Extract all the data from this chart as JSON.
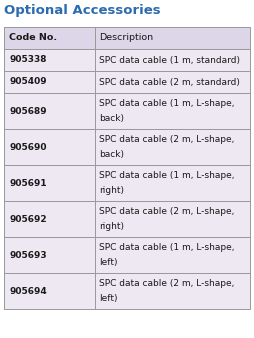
{
  "title": "Optional Accessories",
  "title_color": "#2B6CB0",
  "header": [
    "Code No.",
    "Description"
  ],
  "rows": [
    [
      "905338",
      "SPC data cable (1 m, standard)"
    ],
    [
      "905409",
      "SPC data cable (2 m, standard)"
    ],
    [
      "905689",
      "SPC data cable (1 m, L-shape,\nback)"
    ],
    [
      "905690",
      "SPC data cable (2 m, L-shape,\nback)"
    ],
    [
      "905691",
      "SPC data cable (1 m, L-shape,\nright)"
    ],
    [
      "905692",
      "SPC data cable (2 m, L-shape,\nright)"
    ],
    [
      "905693",
      "SPC data cable (1 m, L-shape,\nleft)"
    ],
    [
      "905694",
      "SPC data cable (2 m, L-shape,\nleft)"
    ]
  ],
  "bg_color": "#EDE8F2",
  "header_bg_color": "#DDD5E8",
  "white_color": "#FFFFFF",
  "border_color": "#999999",
  "text_color": "#1A1A1A",
  "col_split": 0.37,
  "title_fontsize": 9.5,
  "header_fontsize": 6.8,
  "cell_fontsize": 6.5,
  "fig_width": 2.54,
  "fig_height": 3.38,
  "dpi": 100
}
